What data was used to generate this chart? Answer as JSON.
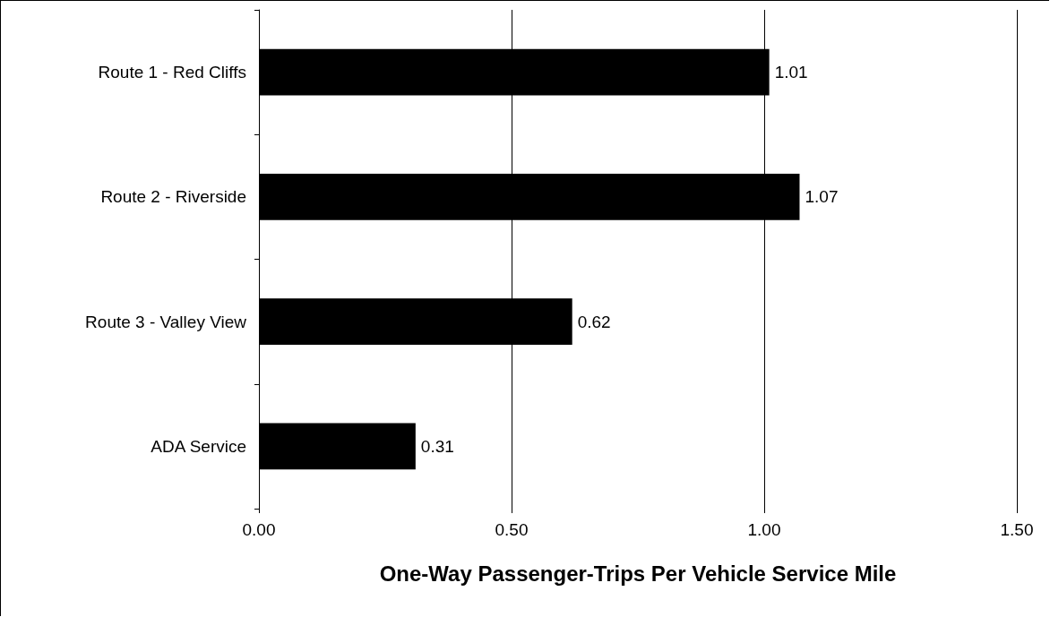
{
  "chart_data": {
    "type": "bar",
    "orientation": "horizontal",
    "categories": [
      "Route 1 - Red Cliffs",
      "Route 2 - Riverside",
      "Route 3 - Valley View",
      "ADA Service"
    ],
    "values": [
      1.01,
      1.07,
      0.62,
      0.31
    ],
    "color": "#000000",
    "xlabel": "One-Way Passenger-Trips Per Vehicle Service Mile",
    "xlim": [
      0,
      1.5
    ],
    "xticks": [
      {
        "value": 0,
        "label": "0.00"
      },
      {
        "value": 0.5,
        "label": "0.50"
      },
      {
        "value": 1,
        "label": "1.00"
      },
      {
        "value": 1.5,
        "label": "1.50"
      }
    ],
    "grid": "x",
    "data_labels": true
  }
}
